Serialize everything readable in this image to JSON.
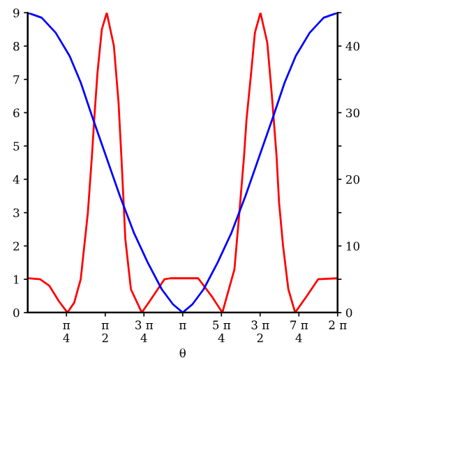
{
  "chart_data": {
    "type": "line",
    "xlabel": "θ",
    "xlim": [
      0,
      6.283
    ],
    "xticks": [
      {
        "value": 0.785,
        "label": "π\n4"
      },
      {
        "value": 1.571,
        "label": "π\n2"
      },
      {
        "value": 2.356,
        "label": "3 π\n4"
      },
      {
        "value": 3.142,
        "label": "π"
      },
      {
        "value": 3.927,
        "label": "5 π\n4"
      },
      {
        "value": 4.712,
        "label": "3 π\n2"
      },
      {
        "value": 5.498,
        "label": "7 π\n4"
      },
      {
        "value": 6.283,
        "label": "2 π"
      }
    ],
    "ylim": [
      0,
      9
    ],
    "yticks": [
      0,
      1,
      2,
      3,
      4,
      5,
      6,
      7,
      8,
      9
    ],
    "y2lim": [
      0,
      45
    ],
    "y2ticks": [
      0,
      {
        "value": 5,
        "label": null
      },
      10,
      {
        "value": 15,
        "label": null
      },
      20,
      {
        "value": 25,
        "label": null
      },
      30,
      {
        "value": 35,
        "label": null
      },
      40,
      {
        "value": 45,
        "label": null
      }
    ],
    "grid": false,
    "legend": false,
    "line_style": "solid",
    "series": [
      {
        "color": "#ff0000",
        "axis": "y",
        "x": [
          0,
          0.251,
          0.44,
          0.628,
          0.804,
          0.942,
          1.074,
          1.219,
          1.301,
          1.357,
          1.414,
          1.502,
          1.602,
          1.747,
          1.841,
          1.898,
          1.979,
          2.092,
          2.312,
          2.545,
          2.771,
          2.89,
          3.456,
          3.726,
          3.946,
          4.191,
          4.291,
          4.386,
          4.436,
          4.53,
          4.606,
          4.719,
          4.857,
          4.951,
          5.045,
          5.096,
          5.177,
          5.284,
          5.422,
          5.661,
          5.887,
          6.283
        ],
        "values": [
          1.03,
          1.0,
          0.8,
          0.35,
          0,
          0.3,
          1,
          3,
          4.7,
          6,
          7.2,
          8.5,
          9,
          8,
          6.3,
          4.7,
          2.2,
          0.7,
          0,
          0.5,
          1,
          1.03,
          1.03,
          0.5,
          0,
          1.3,
          3,
          4.7,
          5.8,
          7.2,
          8.4,
          9,
          8.1,
          6.5,
          4.7,
          3.3,
          2,
          0.7,
          0,
          0.5,
          1,
          1.03
        ]
      },
      {
        "color": "#0000ff",
        "axis": "y2",
        "x": [
          0,
          0.283,
          0.566,
          0.849,
          1.076,
          1.302,
          1.585,
          1.868,
          2.151,
          2.434,
          2.717,
          2.944,
          3.142,
          3.34,
          3.566,
          3.849,
          4.132,
          4.415,
          4.698,
          4.981,
          5.208,
          5.434,
          5.717,
          6.0,
          6.283
        ],
        "values": [
          45,
          44.25,
          42,
          38.5,
          34.5,
          29.5,
          23.5,
          17.5,
          12,
          7.5,
          3.5,
          1.25,
          0,
          1.25,
          3.5,
          7.5,
          12,
          17.5,
          23.5,
          29.5,
          34.5,
          38.5,
          42,
          44.25,
          45
        ]
      }
    ]
  }
}
